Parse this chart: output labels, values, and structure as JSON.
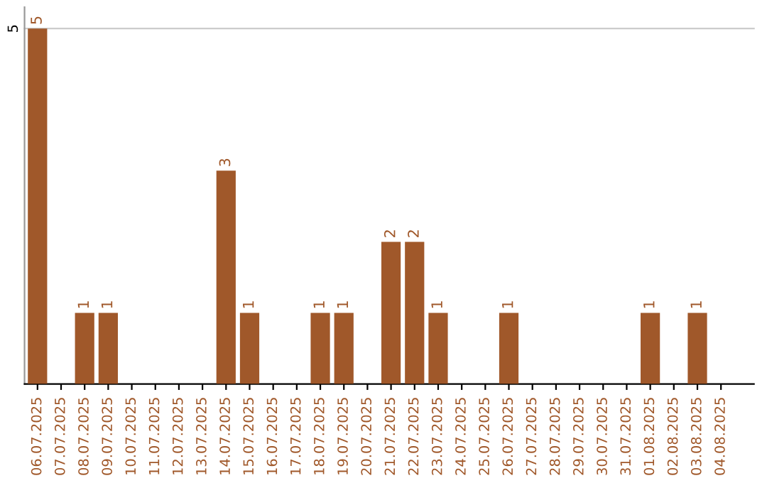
{
  "chart_data": {
    "type": "bar",
    "categories": [
      "06.07.2025",
      "07.07.2025",
      "08.07.2025",
      "09.07.2025",
      "10.07.2025",
      "11.07.2025",
      "12.07.2025",
      "13.07.2025",
      "14.07.2025",
      "15.07.2025",
      "16.07.2025",
      "17.07.2025",
      "18.07.2025",
      "19.07.2025",
      "20.07.2025",
      "21.07.2025",
      "22.07.2025",
      "23.07.2025",
      "24.07.2025",
      "25.07.2025",
      "26.07.2025",
      "27.07.2025",
      "28.07.2025",
      "29.07.2025",
      "30.07.2025",
      "31.07.2025",
      "01.08.2025",
      "02.08.2025",
      "03.08.2025",
      "04.08.2025"
    ],
    "values": [
      5,
      0,
      1,
      1,
      0,
      0,
      0,
      0,
      3,
      1,
      0,
      0,
      1,
      1,
      0,
      2,
      2,
      1,
      0,
      0,
      1,
      0,
      0,
      0,
      0,
      0,
      1,
      0,
      1,
      0
    ],
    "value_labels": [
      "5",
      null,
      "1",
      "1",
      null,
      null,
      null,
      null,
      "3",
      "1",
      null,
      null,
      "1",
      "1",
      null,
      "2",
      "2",
      "1",
      null,
      null,
      "1",
      null,
      null,
      null,
      null,
      null,
      "1",
      null,
      "1",
      null
    ],
    "color": "#a0582a",
    "ylim": [
      0,
      5.3
    ],
    "yticks": [
      5
    ],
    "grid": "y",
    "legend": false
  }
}
